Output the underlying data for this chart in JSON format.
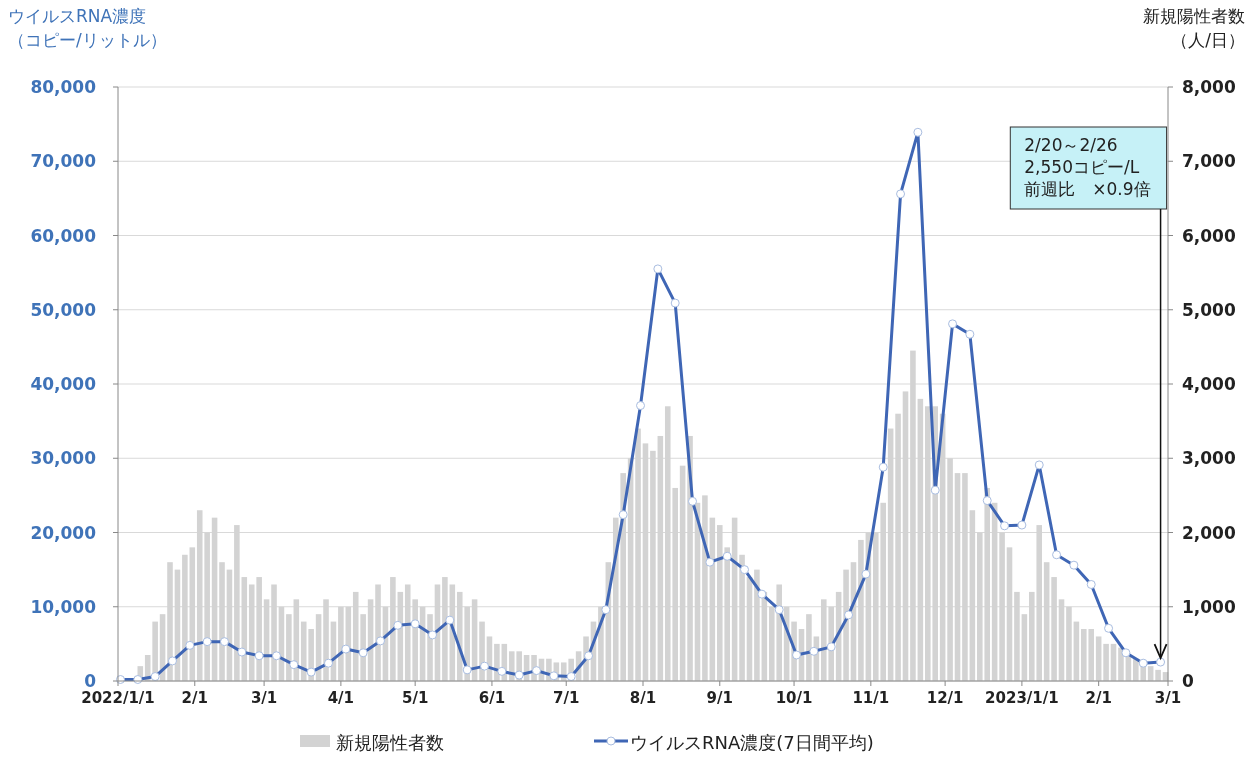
{
  "chart_data": {
    "type": "bar",
    "ylabel": "ウイルスRNA濃度（コピー/リットル）",
    "y2label": "新規陽性者数（人/日）",
    "xlim": [
      "2022-01-01",
      "2023-03-01"
    ],
    "xticks": [
      {
        "value": "2022-01-01",
        "label": "2022/1/1"
      },
      {
        "value": "2022-02-01",
        "label": "2/1"
      },
      {
        "value": "2022-03-01",
        "label": "3/1"
      },
      {
        "value": "2022-04-01",
        "label": "4/1"
      },
      {
        "value": "2022-05-01",
        "label": "5/1"
      },
      {
        "value": "2022-06-01",
        "label": "6/1"
      },
      {
        "value": "2022-07-01",
        "label": "7/1"
      },
      {
        "value": "2022-08-01",
        "label": "8/1"
      },
      {
        "value": "2022-09-01",
        "label": "9/1"
      },
      {
        "value": "2022-10-01",
        "label": "10/1"
      },
      {
        "value": "2022-11-01",
        "label": "11/1"
      },
      {
        "value": "2022-12-01",
        "label": "12/1"
      },
      {
        "value": "2023-01-01",
        "label": "2023/1/1"
      },
      {
        "value": "2023-02-01",
        "label": "2/1"
      },
      {
        "value": "2023-03-01",
        "label": "3/1"
      }
    ],
    "ylim": [
      0,
      80000
    ],
    "yticks": [
      {
        "value": 0,
        "label": "0"
      },
      {
        "value": 10000,
        "label": "10,000"
      },
      {
        "value": 20000,
        "label": "20,000"
      },
      {
        "value": 30000,
        "label": "30,000"
      },
      {
        "value": 40000,
        "label": "40,000"
      },
      {
        "value": 50000,
        "label": "50,000"
      },
      {
        "value": 60000,
        "label": "60,000"
      },
      {
        "value": 70000,
        "label": "70,000"
      },
      {
        "value": 80000,
        "label": "80,000"
      }
    ],
    "y2lim": [
      0,
      8000
    ],
    "y2ticks": [
      {
        "value": 0,
        "label": "0"
      },
      {
        "value": 1000,
        "label": "1,000"
      },
      {
        "value": 2000,
        "label": "2,000"
      },
      {
        "value": 3000,
        "label": "3,000"
      },
      {
        "value": 4000,
        "label": "4,000"
      },
      {
        "value": 5000,
        "label": "5,000"
      },
      {
        "value": 6000,
        "label": "6,000"
      },
      {
        "value": 7000,
        "label": "7,000"
      },
      {
        "value": 8000,
        "label": "8,000"
      }
    ],
    "grid": "y",
    "legend": "bottom",
    "series": [
      {
        "name": "新規陽性者数",
        "axis": "y2",
        "color": "#d3d3d3",
        "x": [
          "2022-01-10",
          "2022-01-13",
          "2022-01-16",
          "2022-01-19",
          "2022-01-22",
          "2022-01-25",
          "2022-01-28",
          "2022-01-31",
          "2022-02-03",
          "2022-02-06",
          "2022-02-09",
          "2022-02-12",
          "2022-02-15",
          "2022-02-18",
          "2022-02-21",
          "2022-02-24",
          "2022-02-27",
          "2022-03-02",
          "2022-03-05",
          "2022-03-08",
          "2022-03-11",
          "2022-03-14",
          "2022-03-17",
          "2022-03-20",
          "2022-03-23",
          "2022-03-26",
          "2022-03-29",
          "2022-04-01",
          "2022-04-04",
          "2022-04-07",
          "2022-04-10",
          "2022-04-13",
          "2022-04-16",
          "2022-04-19",
          "2022-04-22",
          "2022-04-25",
          "2022-04-28",
          "2022-05-01",
          "2022-05-04",
          "2022-05-07",
          "2022-05-10",
          "2022-05-13",
          "2022-05-16",
          "2022-05-19",
          "2022-05-22",
          "2022-05-25",
          "2022-05-28",
          "2022-05-31",
          "2022-06-03",
          "2022-06-06",
          "2022-06-09",
          "2022-06-12",
          "2022-06-15",
          "2022-06-18",
          "2022-06-21",
          "2022-06-24",
          "2022-06-27",
          "2022-06-30",
          "2022-07-03",
          "2022-07-06",
          "2022-07-09",
          "2022-07-12",
          "2022-07-15",
          "2022-07-18",
          "2022-07-21",
          "2022-07-24",
          "2022-07-27",
          "2022-07-30",
          "2022-08-02",
          "2022-08-05",
          "2022-08-08",
          "2022-08-11",
          "2022-08-14",
          "2022-08-17",
          "2022-08-20",
          "2022-08-23",
          "2022-08-26",
          "2022-08-29",
          "2022-09-01",
          "2022-09-04",
          "2022-09-07",
          "2022-09-10",
          "2022-09-13",
          "2022-09-16",
          "2022-09-19",
          "2022-09-22",
          "2022-09-25",
          "2022-09-28",
          "2022-10-01",
          "2022-10-04",
          "2022-10-07",
          "2022-10-10",
          "2022-10-13",
          "2022-10-16",
          "2022-10-19",
          "2022-10-22",
          "2022-10-25",
          "2022-10-28",
          "2022-10-31",
          "2022-11-03",
          "2022-11-06",
          "2022-11-09",
          "2022-11-12",
          "2022-11-15",
          "2022-11-18",
          "2022-11-21",
          "2022-11-24",
          "2022-11-27",
          "2022-11-30",
          "2022-12-03",
          "2022-12-06",
          "2022-12-09",
          "2022-12-12",
          "2022-12-15",
          "2022-12-18",
          "2022-12-21",
          "2022-12-24",
          "2022-12-27",
          "2022-12-30",
          "2023-01-02",
          "2023-01-05",
          "2023-01-08",
          "2023-01-11",
          "2023-01-14",
          "2023-01-17",
          "2023-01-20",
          "2023-01-23",
          "2023-01-26",
          "2023-01-29",
          "2023-02-01",
          "2023-02-04",
          "2023-02-07",
          "2023-02-10",
          "2023-02-13",
          "2023-02-16",
          "2023-02-19",
          "2023-02-22",
          "2023-02-25",
          "2023-02-28"
        ],
        "values": [
          200,
          350,
          800,
          900,
          1600,
          1500,
          1700,
          1800,
          2300,
          2000,
          2200,
          1600,
          1500,
          2100,
          1400,
          1300,
          1400,
          1100,
          1300,
          1000,
          900,
          1100,
          800,
          700,
          900,
          1100,
          800,
          1000,
          1000,
          1200,
          900,
          1100,
          1300,
          1000,
          1400,
          1200,
          1300,
          1100,
          1000,
          900,
          1300,
          1400,
          1300,
          1200,
          1000,
          1100,
          800,
          600,
          500,
          500,
          400,
          400,
          350,
          350,
          300,
          300,
          250,
          250,
          300,
          400,
          600,
          800,
          1000,
          1600,
          2200,
          2800,
          3000,
          3400,
          3200,
          3100,
          3300,
          3700,
          2600,
          2900,
          3300,
          2400,
          2500,
          2200,
          2100,
          1800,
          2200,
          1700,
          1400,
          1500,
          1200,
          1000,
          1300,
          1000,
          800,
          700,
          900,
          600,
          1100,
          1000,
          1200,
          1500,
          1600,
          1900,
          2000,
          2000,
          2400,
          3400,
          3600,
          3900,
          4450,
          3800,
          3700,
          3700,
          3600,
          3000,
          2800,
          2800,
          2300,
          2000,
          2600,
          2400,
          2000,
          1800,
          1200,
          900,
          1200,
          2100,
          1600,
          1400,
          1100,
          1000,
          800,
          700,
          700,
          600,
          500,
          500,
          450,
          350,
          300,
          250,
          200,
          150,
          120
        ]
      },
      {
        "name": "ウイルスRNA濃度(7日間平均)",
        "type": "line",
        "color": "#3f66b5",
        "marker": "circle",
        "x": [
          "2022-01-02",
          "2022-01-09",
          "2022-01-16",
          "2022-01-23",
          "2022-01-30",
          "2022-02-06",
          "2022-02-13",
          "2022-02-20",
          "2022-02-27",
          "2022-03-06",
          "2022-03-13",
          "2022-03-20",
          "2022-03-27",
          "2022-04-03",
          "2022-04-10",
          "2022-04-17",
          "2022-04-24",
          "2022-05-01",
          "2022-05-08",
          "2022-05-15",
          "2022-05-22",
          "2022-05-29",
          "2022-06-05",
          "2022-06-12",
          "2022-06-19",
          "2022-06-26",
          "2022-07-03",
          "2022-07-10",
          "2022-07-17",
          "2022-07-24",
          "2022-07-31",
          "2022-08-07",
          "2022-08-14",
          "2022-08-21",
          "2022-08-28",
          "2022-09-04",
          "2022-09-11",
          "2022-09-18",
          "2022-09-25",
          "2022-10-02",
          "2022-10-09",
          "2022-10-16",
          "2022-10-23",
          "2022-10-30",
          "2022-11-06",
          "2022-11-13",
          "2022-11-20",
          "2022-11-27",
          "2022-12-04",
          "2022-12-11",
          "2022-12-18",
          "2022-12-25",
          "2023-01-01",
          "2023-01-08",
          "2023-01-15",
          "2023-01-22",
          "2023-01-29",
          "2023-02-05",
          "2023-02-12",
          "2023-02-19",
          "2023-02-26"
        ],
        "values": [
          200,
          200,
          600,
          2700,
          4800,
          5300,
          5300,
          3900,
          3400,
          3400,
          2200,
          1200,
          2400,
          4300,
          3800,
          5400,
          7500,
          7700,
          6200,
          8200,
          1500,
          2000,
          1300,
          800,
          1400,
          700,
          600,
          3400,
          9600,
          22400,
          37100,
          55500,
          50900,
          24200,
          16000,
          16800,
          15000,
          11700,
          9600,
          3500,
          4000,
          4600,
          8900,
          14400,
          28800,
          65600,
          73900,
          25700,
          48100,
          46700,
          24300,
          20900,
          21000,
          29100,
          17000,
          15600,
          13000,
          7100,
          3800,
          2400,
          2550
        ]
      }
    ],
    "annotations": [
      {
        "text": "2/20～2/26\n2,550コピー/L\n前週比　×0.9倍",
        "x": "2023-02-26",
        "y": 2550
      }
    ]
  }
}
